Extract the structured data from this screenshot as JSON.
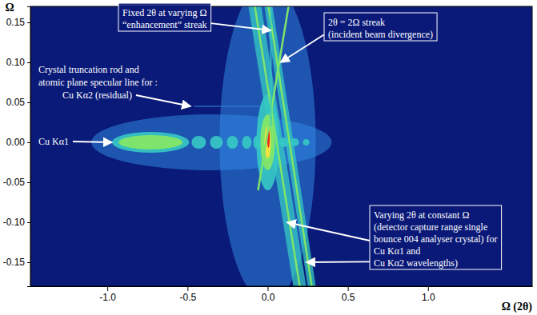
{
  "chart_data": {
    "type": "heatmap",
    "x_label": "Ω (2θ)",
    "y_label": "Ω",
    "xlim": [
      -1.48,
      1.65
    ],
    "ylim": [
      -0.18,
      0.17
    ],
    "xticks": [
      {
        "value": -1,
        "label": "-1.0"
      },
      {
        "value": -0.5,
        "label": "-0.5"
      },
      {
        "value": 0,
        "label": "0.0"
      },
      {
        "value": 0.5,
        "label": "0.5"
      },
      {
        "value": 1,
        "label": "1.0"
      }
    ],
    "yticks": [
      0.15,
      {
        "value": 0.1,
        "label": "0.10"
      },
      0.05,
      {
        "value": 0,
        "label": "0.00"
      },
      -0.05,
      {
        "value": -0.1,
        "label": "-0.10"
      },
      -0.15
    ],
    "contours": [
      {
        "x": 0,
        "y": 0,
        "rx": 0.3,
        "ry": 0.2,
        "level": 1
      },
      {
        "x": -0.35,
        "y": 0,
        "rx": 0.75,
        "ry": 0.035,
        "level": 1
      },
      {
        "x": -0.73,
        "y": 0,
        "rx": 0.24,
        "ry": 0.013,
        "level": 2
      },
      {
        "x": -0.73,
        "y": 0,
        "rx": 0.2,
        "ry": 0.009,
        "level": 3
      },
      {
        "x": -0.43,
        "y": 0,
        "rx": 0.045,
        "ry": 0.008,
        "level": 2
      },
      {
        "x": -0.32,
        "y": 0,
        "rx": 0.04,
        "ry": 0.008,
        "level": 2
      },
      {
        "x": -0.22,
        "y": 0,
        "rx": 0.035,
        "ry": 0.008,
        "level": 2
      },
      {
        "x": -0.13,
        "y": 0,
        "rx": 0.03,
        "ry": 0.008,
        "level": 2
      },
      {
        "x": -0.07,
        "y": 0,
        "rx": 0.02,
        "ry": 0.008,
        "level": 2
      },
      {
        "x": 0.1,
        "y": 0,
        "rx": 0.03,
        "ry": 0.006,
        "level": 2
      },
      {
        "x": 0.17,
        "y": 0,
        "rx": 0.025,
        "ry": 0.005,
        "level": 2
      },
      {
        "x": 0.24,
        "y": 0,
        "rx": 0.02,
        "ry": 0.004,
        "level": 2
      },
      {
        "x": 0,
        "y": 0,
        "rx": 0.07,
        "ry": 0.06,
        "level": 2
      },
      {
        "x": 0,
        "y": 0,
        "rx": 0.045,
        "ry": 0.035,
        "level": 3
      },
      {
        "x": 0,
        "y": 0,
        "rx": 0.02,
        "ry": 0.02,
        "level": 4
      },
      {
        "x": 0.005,
        "y": 0.005,
        "rx": 0.008,
        "ry": 0.012,
        "level": 5
      }
    ],
    "regions": [
      {
        "x": [
          -0.12,
          -0.04,
          0.24,
          0.16
        ],
        "y": [
          0.17,
          0.17,
          -0.18,
          -0.18
        ],
        "level": 2
      },
      {
        "x": [
          -0.02,
          0.03,
          0.3,
          0.25
        ],
        "y": [
          0.17,
          0.17,
          -0.18,
          -0.18
        ],
        "level": 2
      }
    ],
    "streaks": [
      {
        "x": [
          -0.08,
          0.2
        ],
        "y": [
          0.17,
          -0.18
        ],
        "level": 3
      },
      {
        "x": [
          0.005,
          0.275
        ],
        "y": [
          0.17,
          -0.18
        ],
        "level": 3
      },
      {
        "x": [
          -0.06,
          0.13
        ],
        "y": [
          -0.06,
          0.17
        ],
        "level": 3
      },
      {
        "x": [
          0.02,
          0.02
        ],
        "y": [
          0.02,
          0.17
        ],
        "level": 2
      },
      {
        "x": [
          -0.46,
          -0.05
        ],
        "y": [
          0.045,
          0.045
        ],
        "level": 1
      }
    ],
    "annotations": [
      {
        "lines": [
          "Fixed 2θ at varying Ω",
          "“enhancement” streak"
        ],
        "points": [
          [
            0.02,
            0.14
          ]
        ]
      },
      {
        "lines": [
          "2θ = 2Ω streak",
          "(incident beam divergence)"
        ],
        "points": [
          [
            0.08,
            0.1
          ]
        ]
      },
      {
        "lines": [
          "Crystal truncation rod and",
          "atomic plane specular line for :",
          "Cu Kα2 (residual)"
        ],
        "points": [
          [
            -0.48,
            0.045
          ]
        ]
      },
      {
        "lines": [
          "Cu Kα1"
        ],
        "points": [
          [
            -0.97,
            0
          ]
        ]
      },
      {
        "lines": [
          "Varying 2θ at constant Ω",
          "(detector capture range single",
          "bounce 004 analyser crystal) for",
          "Cu Kα1 and",
          "Cu Kα2 wavelengths)"
        ],
        "points": [
          [
            0.12,
            -0.1
          ],
          [
            0.24,
            -0.15
          ]
        ]
      }
    ]
  }
}
